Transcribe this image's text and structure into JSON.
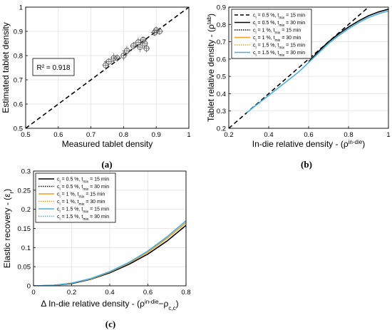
{
  "chart_data": [
    {
      "id": "a",
      "type": "scatter",
      "caption": "(a)",
      "xlabel": "Measured tablet density",
      "ylabel": "Estimated tablet density",
      "xlim": [
        0.5,
        1
      ],
      "ylim": [
        0.5,
        1
      ],
      "xticks": [
        "0.5",
        "0.6",
        "0.7",
        "0.8",
        "0.9",
        "1"
      ],
      "yticks": [
        "0.5",
        "0.6",
        "0.7",
        "0.8",
        "0.9",
        "1"
      ],
      "grid": true,
      "annotation": "R² = 0.918",
      "identity_line": {
        "x": [
          0.5,
          1
        ],
        "y": [
          0.5,
          1
        ],
        "style": "dashed"
      },
      "points": [
        {
          "x": 0.745,
          "y": 0.76,
          "xerr": 0.01,
          "yerr": 0.02
        },
        {
          "x": 0.755,
          "y": 0.775,
          "xerr": 0.015,
          "yerr": 0.015
        },
        {
          "x": 0.77,
          "y": 0.79,
          "xerr": 0.01,
          "yerr": 0.02
        },
        {
          "x": 0.78,
          "y": 0.79,
          "xerr": 0.012,
          "yerr": 0.015
        },
        {
          "x": 0.8,
          "y": 0.8,
          "xerr": 0.01,
          "yerr": 0.02
        },
        {
          "x": 0.81,
          "y": 0.82,
          "xerr": 0.015,
          "yerr": 0.02
        },
        {
          "x": 0.83,
          "y": 0.84,
          "xerr": 0.01,
          "yerr": 0.015
        },
        {
          "x": 0.845,
          "y": 0.855,
          "xerr": 0.015,
          "yerr": 0.02
        },
        {
          "x": 0.85,
          "y": 0.835,
          "xerr": 0.01,
          "yerr": 0.02
        },
        {
          "x": 0.86,
          "y": 0.865,
          "xerr": 0.012,
          "yerr": 0.015
        },
        {
          "x": 0.865,
          "y": 0.85,
          "xerr": 0.01,
          "yerr": 0.02
        },
        {
          "x": 0.87,
          "y": 0.83,
          "xerr": 0.01,
          "yerr": 0.015
        },
        {
          "x": 0.895,
          "y": 0.895,
          "xerr": 0.012,
          "yerr": 0.015
        },
        {
          "x": 0.9,
          "y": 0.905,
          "xerr": 0.01,
          "yerr": 0.015
        },
        {
          "x": 0.91,
          "y": 0.9,
          "xerr": 0.012,
          "yerr": 0.015
        }
      ]
    },
    {
      "id": "b",
      "type": "line",
      "caption": "(b)",
      "xlabel": "In-die relative density - (ρ",
      "xlabel_sup": "in-die",
      "xlabel_end": ")",
      "ylabel": "Tablet relative density - (ρ",
      "ylabel_sup": "tab",
      "ylabel_end": ")",
      "xlim": [
        0.2,
        1
      ],
      "ylim": [
        0.2,
        0.9
      ],
      "xticks": [
        "0.2",
        "0.4",
        "0.6",
        "0.8",
        "1"
      ],
      "yticks": [
        "0.2",
        "0.3",
        "0.4",
        "0.5",
        "0.6",
        "0.7",
        "0.8",
        "0.9"
      ],
      "grid": true,
      "legend_position": "top-left",
      "legend": [
        {
          "label": "c",
          "sub": "l",
          "mid": " = 0.5 %, t",
          "sub2": "mix",
          "end": " = 15 min",
          "color": "#000000",
          "dash": "dashed"
        },
        {
          "label": "c",
          "sub": "l",
          "mid": " = 0.5 %, t",
          "sub2": "mix",
          "end": " = 30 min",
          "color": "#000000",
          "dash": "solid"
        },
        {
          "label": "c",
          "sub": "l",
          "mid": " = 1 %, t",
          "sub2": "mix",
          "end": " = 15 min",
          "color": "#000000",
          "dash": "dotted"
        },
        {
          "label": "c",
          "sub": "l",
          "mid": " = 1 %, t",
          "sub2": "mix",
          "end": " = 30 min",
          "color": "#f0a020",
          "dash": "solid"
        },
        {
          "label": "c",
          "sub": "l",
          "mid": " = 1.5 %, t",
          "sub2": "mix",
          "end": " = 15 min",
          "color": "#f0a020",
          "dash": "dotted"
        },
        {
          "label": "c",
          "sub": "l",
          "mid": " = 1.5 %, t",
          "sub2": "mix",
          "end": " = 30 min",
          "color": "#4aaee0",
          "dash": "solid"
        }
      ],
      "identity_line": {
        "x": [
          0.2,
          1
        ],
        "y": [
          0.2,
          1
        ],
        "style": "dashed"
      },
      "series": [
        {
          "name": "black",
          "color": "#000000",
          "x": [
            0.6,
            0.65,
            0.7,
            0.75,
            0.8,
            0.85,
            0.9,
            0.95,
            1.0
          ],
          "y": [
            0.585,
            0.645,
            0.7,
            0.745,
            0.785,
            0.82,
            0.85,
            0.872,
            0.888
          ]
        },
        {
          "name": "blue",
          "color": "#4aaee0",
          "x": [
            0.29,
            0.35,
            0.4,
            0.45,
            0.5,
            0.55,
            0.6,
            0.65,
            0.7,
            0.75,
            0.8,
            0.85,
            0.9,
            0.95,
            1.0
          ],
          "y": [
            0.29,
            0.345,
            0.39,
            0.435,
            0.48,
            0.525,
            0.58,
            0.635,
            0.69,
            0.735,
            0.775,
            0.81,
            0.84,
            0.862,
            0.878
          ]
        }
      ]
    },
    {
      "id": "c",
      "type": "line",
      "caption": "(c)",
      "xlabel": "Δ In-die relative density - (ρ",
      "xlabel_sup": "in-die",
      "xlabel_mid": "−ρ",
      "xlabel_sub": "c,c",
      "xlabel_end": ")",
      "ylabel": "Elastic recovery - (ε",
      "ylabel_sub": "r",
      "ylabel_end": ")",
      "xlim": [
        0,
        0.8
      ],
      "ylim": [
        0,
        0.3
      ],
      "xticks": [
        "0",
        "0.2",
        "0.4",
        "0.6",
        "0.8"
      ],
      "yticks": [
        "0",
        "0.05",
        "0.1",
        "0.15",
        "0.2",
        "0.25",
        "0.3"
      ],
      "grid": true,
      "legend_position": "top-left",
      "legend": [
        {
          "label": "c",
          "sub": "l",
          "mid": " = 0.5 %, t",
          "sub2": "mix",
          "end": " = 15 min",
          "color": "#000000",
          "dash": "solid"
        },
        {
          "label": "c",
          "sub": "l",
          "mid": " = 0.5 %, t",
          "sub2": "mix",
          "end": " = 30 min",
          "color": "#000000",
          "dash": "dotted"
        },
        {
          "label": "c",
          "sub": "l",
          "mid": " = 1 %, t",
          "sub2": "mix",
          "end": " = 15 min",
          "color": "#f0a020",
          "dash": "solid"
        },
        {
          "label": "c",
          "sub": "l",
          "mid": " = 1 %, t",
          "sub2": "mix",
          "end": " = 30 min",
          "color": "#f0a020",
          "dash": "dotted"
        },
        {
          "label": "c",
          "sub": "l",
          "mid": " = 1.5 %, t",
          "sub2": "mix",
          "end": " = 15 min",
          "color": "#4aaee0",
          "dash": "solid"
        },
        {
          "label": "c",
          "sub": "l",
          "mid": " = 1.5 %, t",
          "sub2": "mix",
          "end": " = 30 min",
          "color": "#4aaee0",
          "dash": "dotted"
        }
      ],
      "series": [
        {
          "name": "black",
          "color": "#000000",
          "x": [
            0,
            0.1,
            0.2,
            0.3,
            0.4,
            0.5,
            0.6,
            0.7,
            0.8
          ],
          "y": [
            0,
            0.001,
            0.006,
            0.017,
            0.034,
            0.056,
            0.083,
            0.117,
            0.158
          ]
        },
        {
          "name": "orange",
          "color": "#f0a020",
          "x": [
            0,
            0.1,
            0.2,
            0.3,
            0.4,
            0.5,
            0.6,
            0.7,
            0.8
          ],
          "y": [
            0,
            0.001,
            0.007,
            0.018,
            0.036,
            0.059,
            0.088,
            0.124,
            0.165
          ]
        },
        {
          "name": "blue",
          "color": "#4aaee0",
          "x": [
            0,
            0.1,
            0.2,
            0.3,
            0.4,
            0.5,
            0.6,
            0.7,
            0.8
          ],
          "y": [
            0,
            0.001,
            0.007,
            0.019,
            0.037,
            0.061,
            0.091,
            0.128,
            0.17
          ]
        }
      ]
    }
  ]
}
